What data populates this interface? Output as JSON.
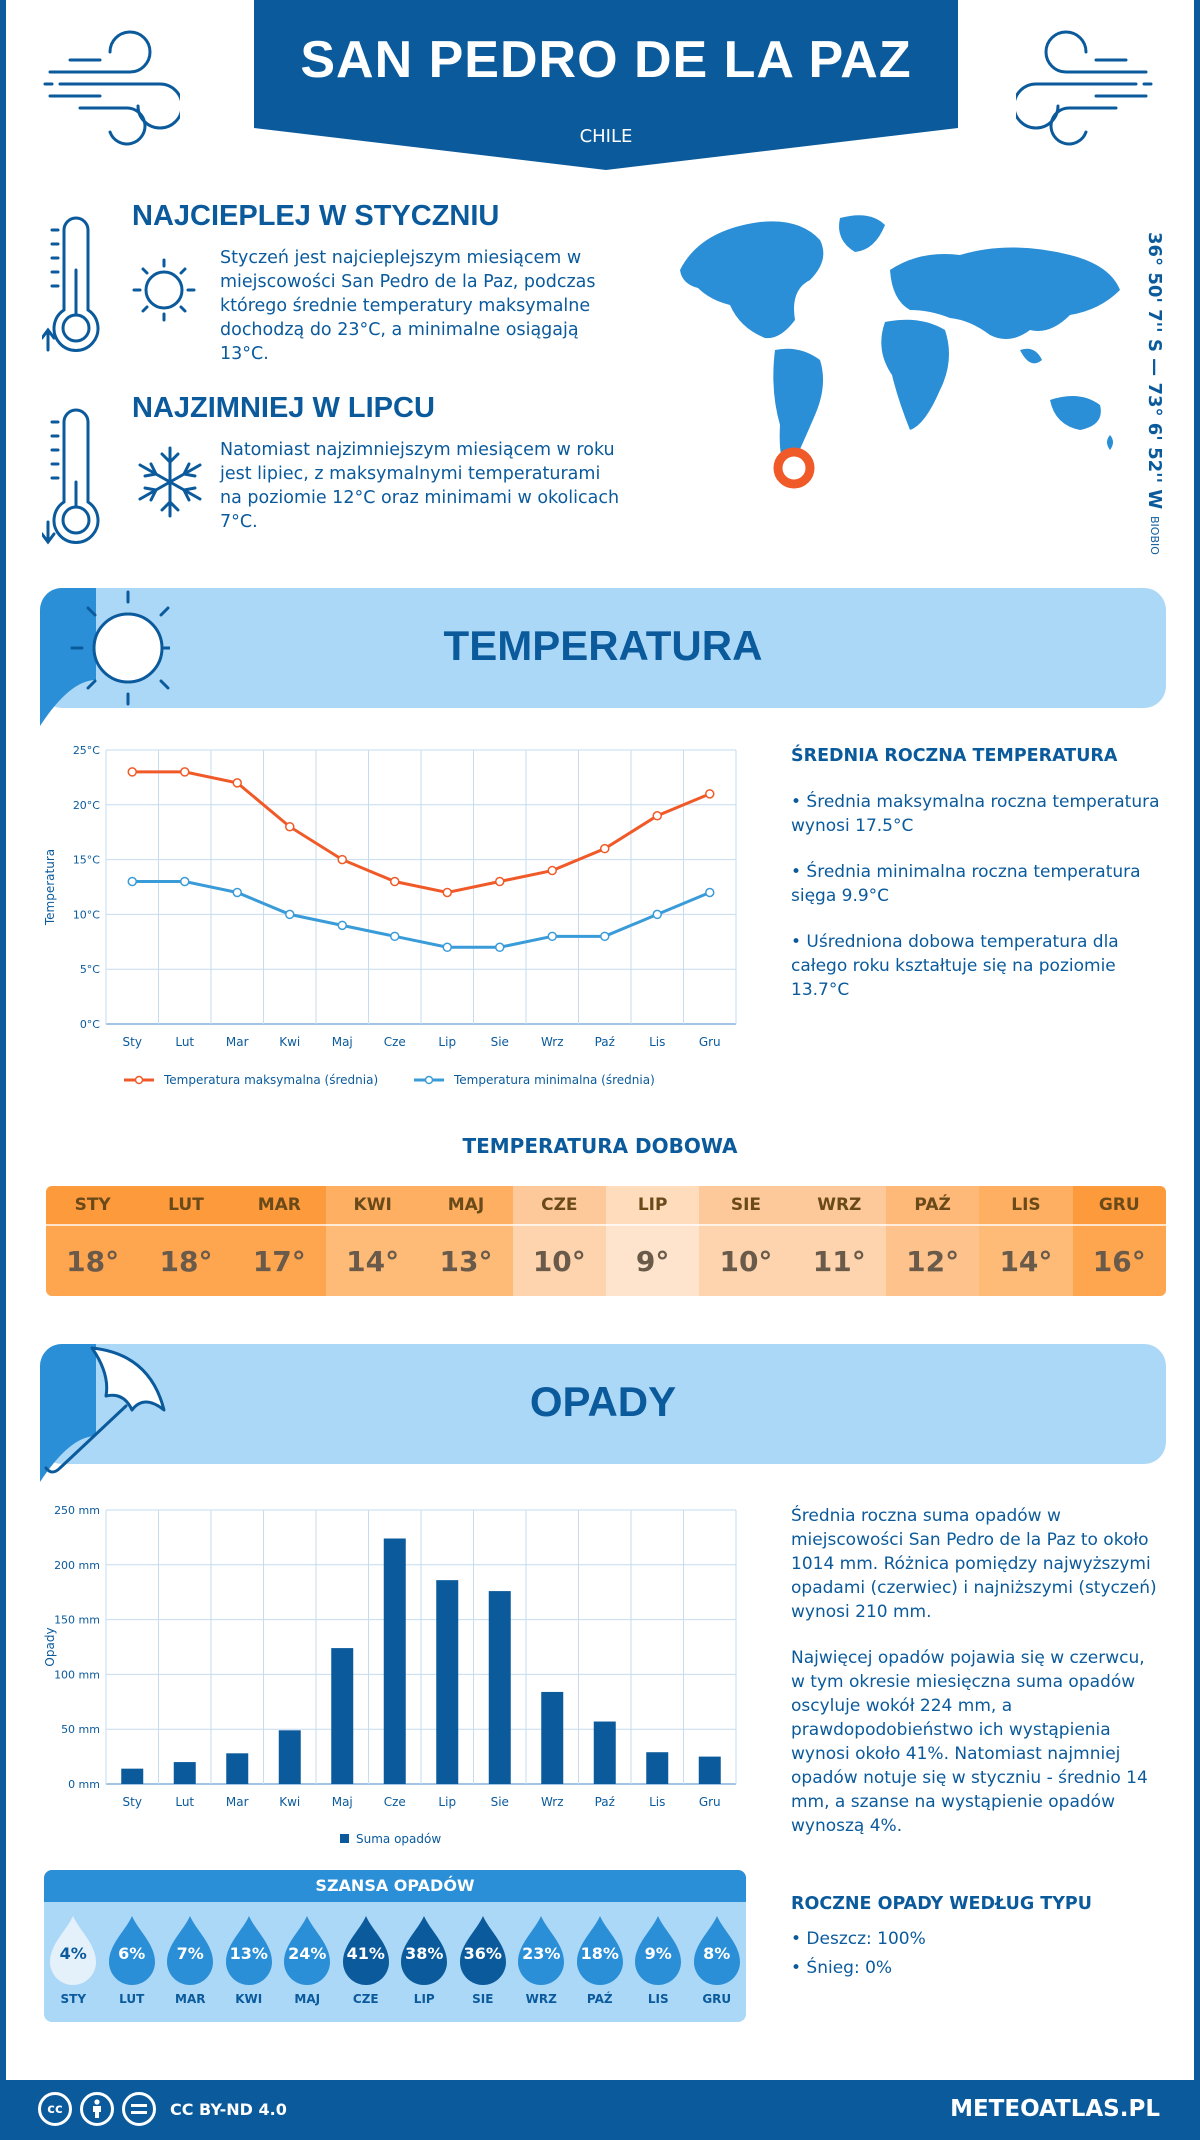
{
  "header": {
    "city": "SAN PEDRO DE LA PAZ",
    "country": "CHILE"
  },
  "facts": {
    "warmest": {
      "title": "NAJCIEPLEJ W STYCZNIU",
      "text": "Styczeń jest najcieplejszym miesiącem w miejscowości San Pedro de la Paz, podczas którego średnie temperatury maksymalne dochodzą do 23°C, a minimalne osiągają 13°C."
    },
    "coldest": {
      "title": "NAJZIMNIEJ W LIPCU",
      "text": "Natomiast najzimniejszym miesiącem w roku jest lipiec, z maksymalnymi temperaturami na poziomie 12°C oraz minimami w okolicach 7°C."
    }
  },
  "location": {
    "coords": "36° 50' 7'' S — 73° 6' 52'' W",
    "region": "BIOBIO"
  },
  "sections": {
    "temperature": "TEMPERATURA",
    "precipitation": "OPADY"
  },
  "temperature_summary": {
    "title": "ŚREDNIA ROCZNA TEMPERATURA",
    "items": [
      "• Średnia maksymalna roczna temperatura wynosi 17.5°C",
      "• Średnia minimalna roczna temperatura sięga 9.9°C",
      "• Uśredniona dobowa temperatura dla całego roku kształtuje się na poziomie 13.7°C"
    ]
  },
  "daily": {
    "title": "TEMPERATURA DOBOWA",
    "months": [
      "STY",
      "LUT",
      "MAR",
      "KWI",
      "MAJ",
      "CZE",
      "LIP",
      "SIE",
      "WRZ",
      "PAŹ",
      "LIS",
      "GRU"
    ],
    "values": [
      "18°",
      "18°",
      "17°",
      "14°",
      "13°",
      "10°",
      "9°",
      "10°",
      "11°",
      "12°",
      "14°",
      "16°"
    ],
    "header_colors": [
      "#fd9a3c",
      "#fd9a3c",
      "#fd9a3c",
      "#feaf62",
      "#feaf62",
      "#fec99a",
      "#fedcbc",
      "#fec99a",
      "#fec99a",
      "#feb878",
      "#feaf62",
      "#fd9a3c"
    ],
    "cell_colors": [
      "#fea550",
      "#fea550",
      "#fea550",
      "#febb78",
      "#febb78",
      "#fed4ae",
      "#fee4cc",
      "#fed4ae",
      "#fed4ae",
      "#fec38c",
      "#febb78",
      "#fea550"
    ]
  },
  "precip_text": {
    "p1": "Średnia roczna suma opadów w miejscowości San Pedro de la Paz to około 1014 mm. Różnica pomiędzy najwyższymi opadami (czerwiec) i najniższymi (styczeń) wynosi 210 mm.",
    "p2": "Najwięcej opadów pojawia się w czerwcu, w tym okresie miesięczna suma opadów oscyluje wokół 224 mm, a prawdopodobieństwo ich wystąpienia wynosi około 41%. Natomiast najmniej opadów notuje się w styczniu - średnio 14 mm, a szanse na wystąpienie opadów wynoszą 4%."
  },
  "chance": {
    "title": "SZANSA OPADÓW",
    "months": [
      "STY",
      "LUT",
      "MAR",
      "KWI",
      "MAJ",
      "CZE",
      "LIP",
      "SIE",
      "WRZ",
      "PAŹ",
      "LIS",
      "GRU"
    ],
    "values": [
      "4%",
      "6%",
      "7%",
      "13%",
      "24%",
      "41%",
      "38%",
      "36%",
      "23%",
      "18%",
      "9%",
      "8%"
    ],
    "colors": [
      "#e4f1fb",
      "#2a8fd6",
      "#2a8fd6",
      "#2a8fd6",
      "#2a8fd6",
      "#0a5a9c",
      "#0a5a9c",
      "#0a5a9c",
      "#2a8fd6",
      "#2a8fd6",
      "#2a8fd6",
      "#2a8fd6"
    ]
  },
  "rain_type": {
    "title": "ROCZNE OPADY WEDŁUG TYPU",
    "rain": "• Deszcz: 100%",
    "snow": "• Śnieg: 0%"
  },
  "footer": {
    "license": "CC BY-ND 4.0",
    "site": "METEOATLAS.PL"
  },
  "chart_data": [
    {
      "type": "line",
      "categories": [
        "Sty",
        "Lut",
        "Mar",
        "Kwi",
        "Maj",
        "Cze",
        "Lip",
        "Sie",
        "Wrz",
        "Paź",
        "Lis",
        "Gru"
      ],
      "series": [
        {
          "name": "Temperatura maksymalna (średnia)",
          "values": [
            23,
            23,
            22,
            18,
            15,
            13,
            12,
            13,
            14,
            16,
            19,
            21
          ],
          "color": "#f05a28"
        },
        {
          "name": "Temperatura minimalna (średnia)",
          "values": [
            13,
            13,
            12,
            10,
            9,
            8,
            7,
            7,
            8,
            8,
            10,
            12
          ],
          "color": "#3a9bd9"
        }
      ],
      "ylabel": "Temperatura",
      "yticks": [
        "0°C",
        "5°C",
        "10°C",
        "15°C",
        "20°C",
        "25°C"
      ],
      "ylim": [
        0,
        25
      ],
      "grid": true,
      "legend": "bottom"
    },
    {
      "type": "bar",
      "categories": [
        "Sty",
        "Lut",
        "Mar",
        "Kwi",
        "Maj",
        "Cze",
        "Lip",
        "Sie",
        "Wrz",
        "Paź",
        "Lis",
        "Gru"
      ],
      "series": [
        {
          "name": "Suma opadów",
          "values": [
            14,
            20,
            28,
            49,
            124,
            224,
            186,
            176,
            84,
            57,
            29,
            25
          ],
          "color": "#0a5a9c"
        }
      ],
      "ylabel": "Opady",
      "yticks": [
        "0 mm",
        "50 mm",
        "100 mm",
        "150 mm",
        "200 mm",
        "250 mm"
      ],
      "ylim": [
        0,
        250
      ],
      "grid": true,
      "legend": "bottom"
    }
  ]
}
